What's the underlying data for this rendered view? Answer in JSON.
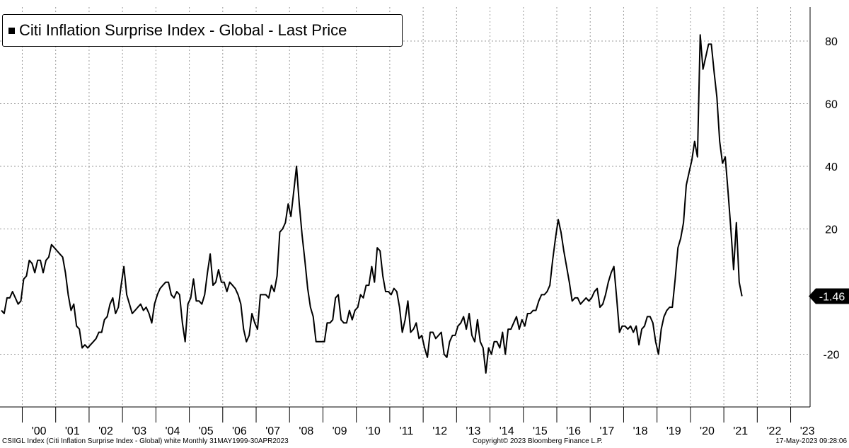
{
  "legend": {
    "label": "Citi Inflation Surprise Index - Global - Last Price"
  },
  "footer": {
    "left": "CSIIGL Index (Citi Inflation Surprise Index - Global) white  Monthly 31MAY1999-30APR2023",
    "center": "Copyright© 2023 Bloomberg Finance L.P.",
    "right": "17-May-2023 09:28:06"
  },
  "chart_data": {
    "type": "line",
    "title": "Citi Inflation Surprise Index - Global - Last Price",
    "frequency": "Monthly",
    "x_start": "1999-05",
    "x_end": "2023-04",
    "ylim": [
      -36,
      90
    ],
    "yticks": [
      -20,
      20,
      40,
      60,
      80
    ],
    "xtick_labels": [
      "'00",
      "'01",
      "'02",
      "'03",
      "'04",
      "'05",
      "'06",
      "'07",
      "'08",
      "'09",
      "'10",
      "'11",
      "'12",
      "'13",
      "'14",
      "'15",
      "'16",
      "'17",
      "'18",
      "'19",
      "'20",
      "'21",
      "'22",
      "'23"
    ],
    "last_value_label": "-1.46",
    "grid": true,
    "legend_position": "top-left",
    "line_color": "#000000",
    "series": [
      {
        "name": "Citi Inflation Surprise Index - Global - Last Price",
        "values": [
          -6,
          -7,
          -2,
          -2,
          0,
          -2,
          -4,
          -3,
          4,
          5,
          10,
          9,
          6,
          10,
          10,
          6,
          10,
          11,
          15,
          14,
          13,
          12,
          11,
          6,
          -1,
          -6,
          -4,
          -11,
          -12,
          -18,
          -17,
          -18,
          -17,
          -16,
          -15,
          -13,
          -13,
          -9,
          -8,
          -4,
          -2,
          -7,
          -5,
          2,
          8,
          -1,
          -4,
          -7,
          -6,
          -5,
          -4,
          -6,
          -5,
          -7,
          -10,
          -4,
          -1,
          1,
          2,
          3,
          3,
          -1,
          -2,
          0,
          -1,
          -10,
          -16,
          -4,
          -2,
          4,
          -3,
          -3,
          -4,
          -1,
          6,
          12,
          2,
          3,
          7,
          3,
          3,
          0,
          3,
          2,
          1,
          -1,
          -4,
          -12,
          -16,
          -14,
          -7,
          -10,
          -12,
          -1,
          -1,
          -1,
          -2,
          2,
          0,
          5,
          19,
          20,
          22,
          28,
          24,
          32,
          40,
          28,
          18,
          10,
          1,
          -5,
          -8,
          -16,
          -16,
          -16,
          -16,
          -10,
          -10,
          -9,
          -2,
          -1,
          -9,
          -10,
          -10,
          -6,
          -9,
          -6,
          -5,
          -1,
          -2,
          2,
          2,
          8,
          3,
          14,
          13,
          5,
          0,
          0,
          -1,
          1,
          0,
          -5,
          -13,
          -9,
          -3,
          -13,
          -12,
          -10,
          -15,
          -14,
          -18,
          -21,
          -13,
          -13,
          -15,
          -14,
          -13,
          -20,
          -21,
          -16,
          -14,
          -14,
          -11,
          -10,
          -8,
          -12,
          -7,
          -14,
          -16,
          -9,
          -16,
          -18,
          -26,
          -18,
          -20,
          -16,
          -16,
          -18,
          -13,
          -20,
          -12,
          -12,
          -10,
          -8,
          -12,
          -9,
          -11,
          -7,
          -7,
          -6,
          -6,
          -3,
          -1,
          -1,
          0,
          2,
          10,
          17,
          23,
          19,
          13,
          8,
          3,
          -3,
          -2,
          -2,
          -4,
          -3,
          -2,
          -3,
          -2,
          0,
          1,
          -5,
          -4,
          -1,
          3,
          6,
          8,
          -2,
          -13,
          -11,
          -11,
          -12,
          -11,
          -13,
          -11,
          -17,
          -12,
          -11,
          -8,
          -8,
          -10,
          -16,
          -20,
          -12,
          -8,
          -6,
          -5,
          -5,
          4,
          14,
          17,
          22,
          34,
          38,
          42,
          48,
          43,
          82,
          71,
          75,
          79,
          79,
          70,
          62,
          48,
          41,
          43,
          32,
          20,
          7,
          22,
          3,
          -1.46
        ]
      }
    ]
  }
}
